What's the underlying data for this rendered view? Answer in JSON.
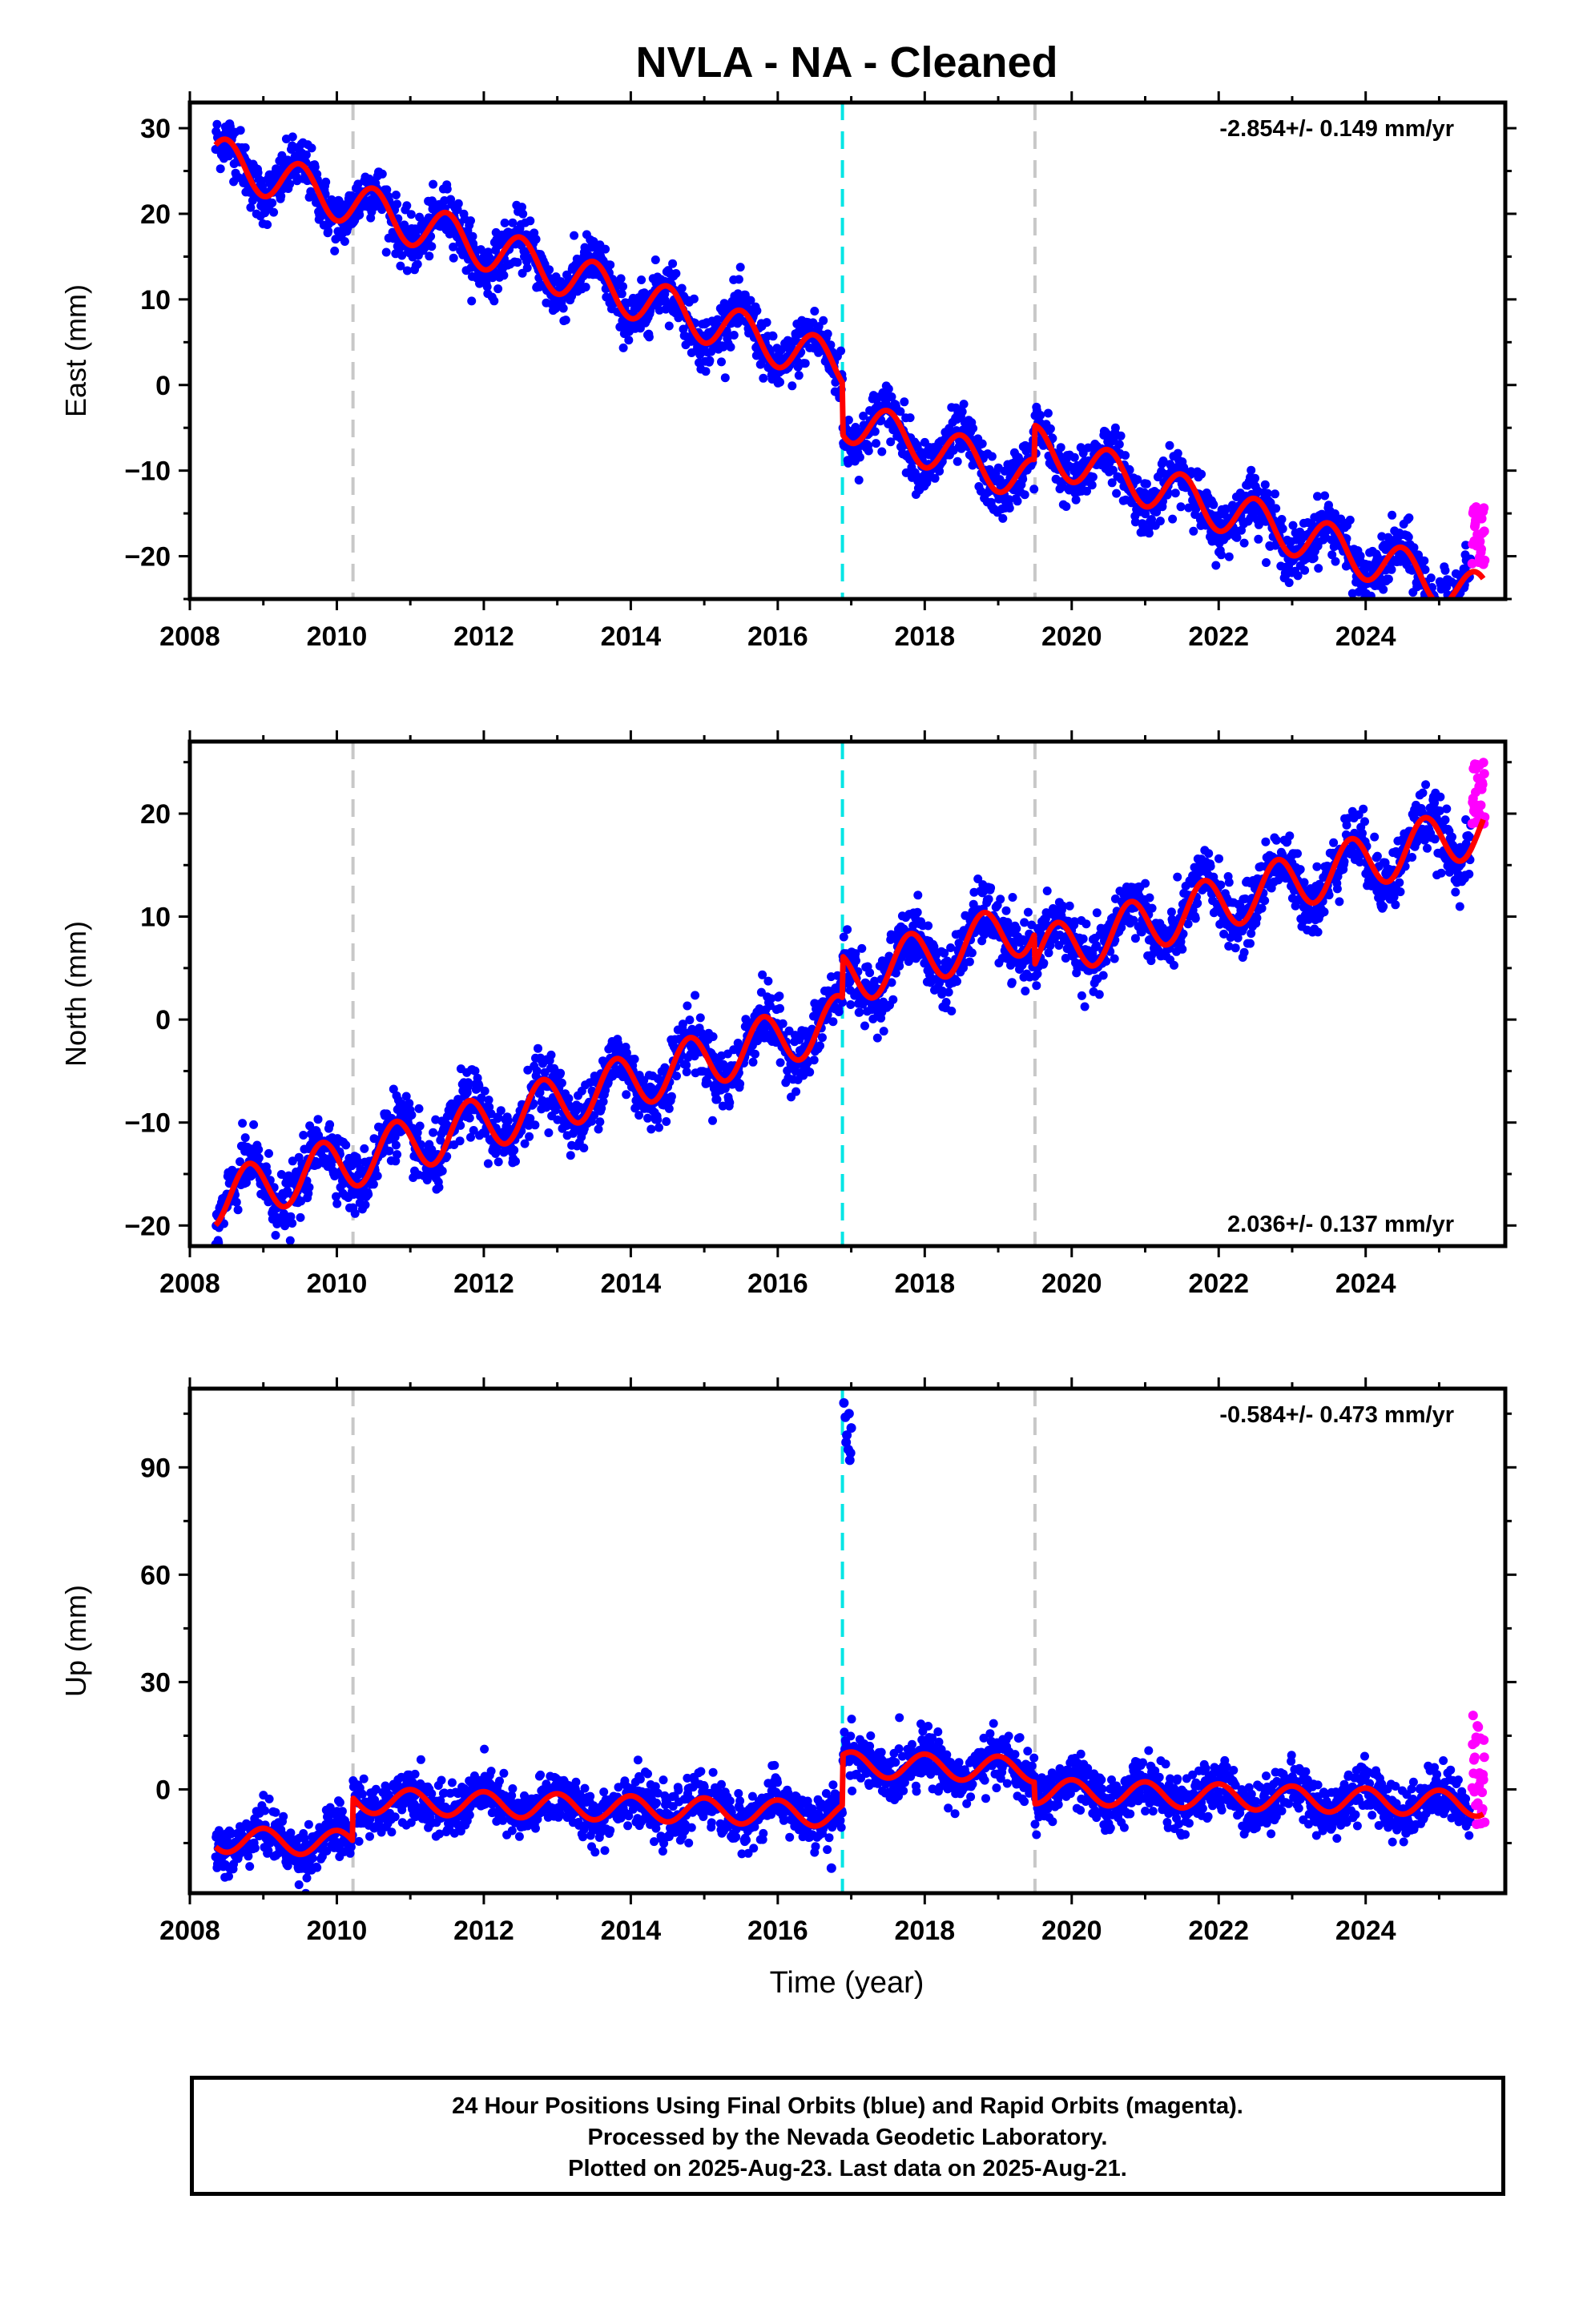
{
  "figure_title": "NVLA  - NA - Cleaned",
  "x_axis_label": "Time (year)",
  "footer": {
    "line1": "24 Hour Positions Using Final Orbits (blue) and Rapid Orbits (magenta).",
    "line2": "Processed by the Nevada Geodetic Laboratory.",
    "line3": "Plotted on 2025-Aug-23. Last data on 2025-Aug-21."
  },
  "colors": {
    "final_orbits": "#0000ff",
    "rapid_orbits": "#ff00ff",
    "model_fit": "#ff0000",
    "equipment_change": "#c8c8c8",
    "earthquake": "#00e5e5"
  },
  "chart_data": [
    {
      "type": "scatter",
      "component": "east",
      "ylabel": "East (mm)",
      "xlabel": "",
      "rate_text": "-2.854+/- 0.149 mm/yr",
      "rate_position": "top-right",
      "xlim": [
        2008.0,
        2025.9
      ],
      "ylim": [
        -25,
        33
      ],
      "x_ticks": [
        2008,
        2010,
        2012,
        2014,
        2016,
        2018,
        2020,
        2022,
        2024
      ],
      "x_tick_labels": [
        "2008",
        "2010",
        "2012",
        "2014",
        "2016",
        "2018",
        "2020",
        "2022",
        "2024"
      ],
      "y_ticks": [
        -20,
        -10,
        0,
        10,
        20,
        30
      ],
      "y_tick_labels": [
        "−20",
        "−10",
        "0",
        "10",
        "20",
        "30"
      ],
      "vlines": [
        {
          "x": 2010.22,
          "style": "equipment_change"
        },
        {
          "x": 2016.88,
          "style": "earthquake"
        },
        {
          "x": 2019.5,
          "style": "equipment_change"
        }
      ],
      "model": {
        "t0": 2008.35,
        "t1": 2025.6,
        "intercept": 26.5,
        "rate": -2.854,
        "amplitude": 2.6,
        "phase": 0.25,
        "offsets": [
          {
            "x": 2016.88,
            "value": -6.0
          },
          {
            "x": 2019.5,
            "value": 4.0
          }
        ]
      },
      "scatter_spread": 1.6,
      "rapid": {
        "x0": 2025.45,
        "x1": 2025.62,
        "ymin": -21,
        "ymax": -14
      },
      "outliers": []
    },
    {
      "type": "scatter",
      "component": "north",
      "ylabel": "North (mm)",
      "xlabel": "",
      "rate_text": "2.036+/- 0.137 mm/yr",
      "rate_position": "bottom-right",
      "xlim": [
        2008.0,
        2025.9
      ],
      "ylim": [
        -22,
        27
      ],
      "x_ticks": [
        2008,
        2010,
        2012,
        2014,
        2016,
        2018,
        2020,
        2022,
        2024
      ],
      "x_tick_labels": [
        "2008",
        "2010",
        "2012",
        "2014",
        "2016",
        "2018",
        "2020",
        "2022",
        "2024"
      ],
      "y_ticks": [
        -20,
        -10,
        0,
        10,
        20
      ],
      "y_tick_labels": [
        "−20",
        "−10",
        "0",
        "10",
        "20"
      ],
      "vlines": [
        {
          "x": 2010.22,
          "style": "equipment_change"
        },
        {
          "x": 2016.88,
          "style": "earthquake"
        },
        {
          "x": 2019.5,
          "style": "equipment_change"
        }
      ],
      "model": {
        "t0": 2008.35,
        "t1": 2025.6,
        "intercept": -17.5,
        "rate": 2.036,
        "amplitude": 2.6,
        "phase": 0.55,
        "offsets": [
          {
            "x": 2016.88,
            "value": 4.0
          },
          {
            "x": 2019.5,
            "value": -3.0
          }
        ]
      },
      "scatter_spread": 1.5,
      "rapid": {
        "x0": 2025.45,
        "x1": 2025.62,
        "ymin": 19,
        "ymax": 25
      },
      "outliers": []
    },
    {
      "type": "scatter",
      "component": "up",
      "ylabel": "Up (mm)",
      "xlabel": "Time (year)",
      "rate_text": "-0.584+/- 0.473 mm/yr",
      "rate_position": "top-right",
      "xlim": [
        2008.0,
        2025.9
      ],
      "ylim": [
        -29,
        112
      ],
      "x_ticks": [
        2008,
        2010,
        2012,
        2014,
        2016,
        2018,
        2020,
        2022,
        2024
      ],
      "x_tick_labels": [
        "2008",
        "2010",
        "2012",
        "2014",
        "2016",
        "2018",
        "2020",
        "2022",
        "2024"
      ],
      "y_ticks": [
        0,
        30,
        60,
        90
      ],
      "y_tick_labels": [
        "0",
        "30",
        "60",
        "90"
      ],
      "vlines": [
        {
          "x": 2010.22,
          "style": "equipment_change"
        },
        {
          "x": 2016.88,
          "style": "earthquake"
        },
        {
          "x": 2019.5,
          "style": "equipment_change"
        }
      ],
      "model": {
        "t0": 2008.35,
        "t1": 2025.6,
        "intercept": -14.0,
        "rate": -0.584,
        "amplitude": 3.5,
        "phase": 0.75,
        "offsets": [
          {
            "x": 2010.22,
            "value": 12.0
          },
          {
            "x": 2016.88,
            "value": 14.0
          },
          {
            "x": 2019.5,
            "value": -6.0
          }
        ]
      },
      "scatter_spread": 3.6,
      "rapid": {
        "x0": 2025.45,
        "x1": 2025.62,
        "ymin": -10,
        "ymax": 22
      },
      "outliers": [
        {
          "x": 2016.9,
          "y": 108
        },
        {
          "x": 2016.92,
          "y": 104
        },
        {
          "x": 2016.94,
          "y": 99
        },
        {
          "x": 2016.96,
          "y": 95
        },
        {
          "x": 2016.98,
          "y": 92
        },
        {
          "x": 2017.0,
          "y": 101
        },
        {
          "x": 2016.93,
          "y": 97
        },
        {
          "x": 2016.97,
          "y": 105
        },
        {
          "x": 2016.99,
          "y": 94
        },
        {
          "x": 2016.73,
          "y": -22
        }
      ]
    }
  ]
}
